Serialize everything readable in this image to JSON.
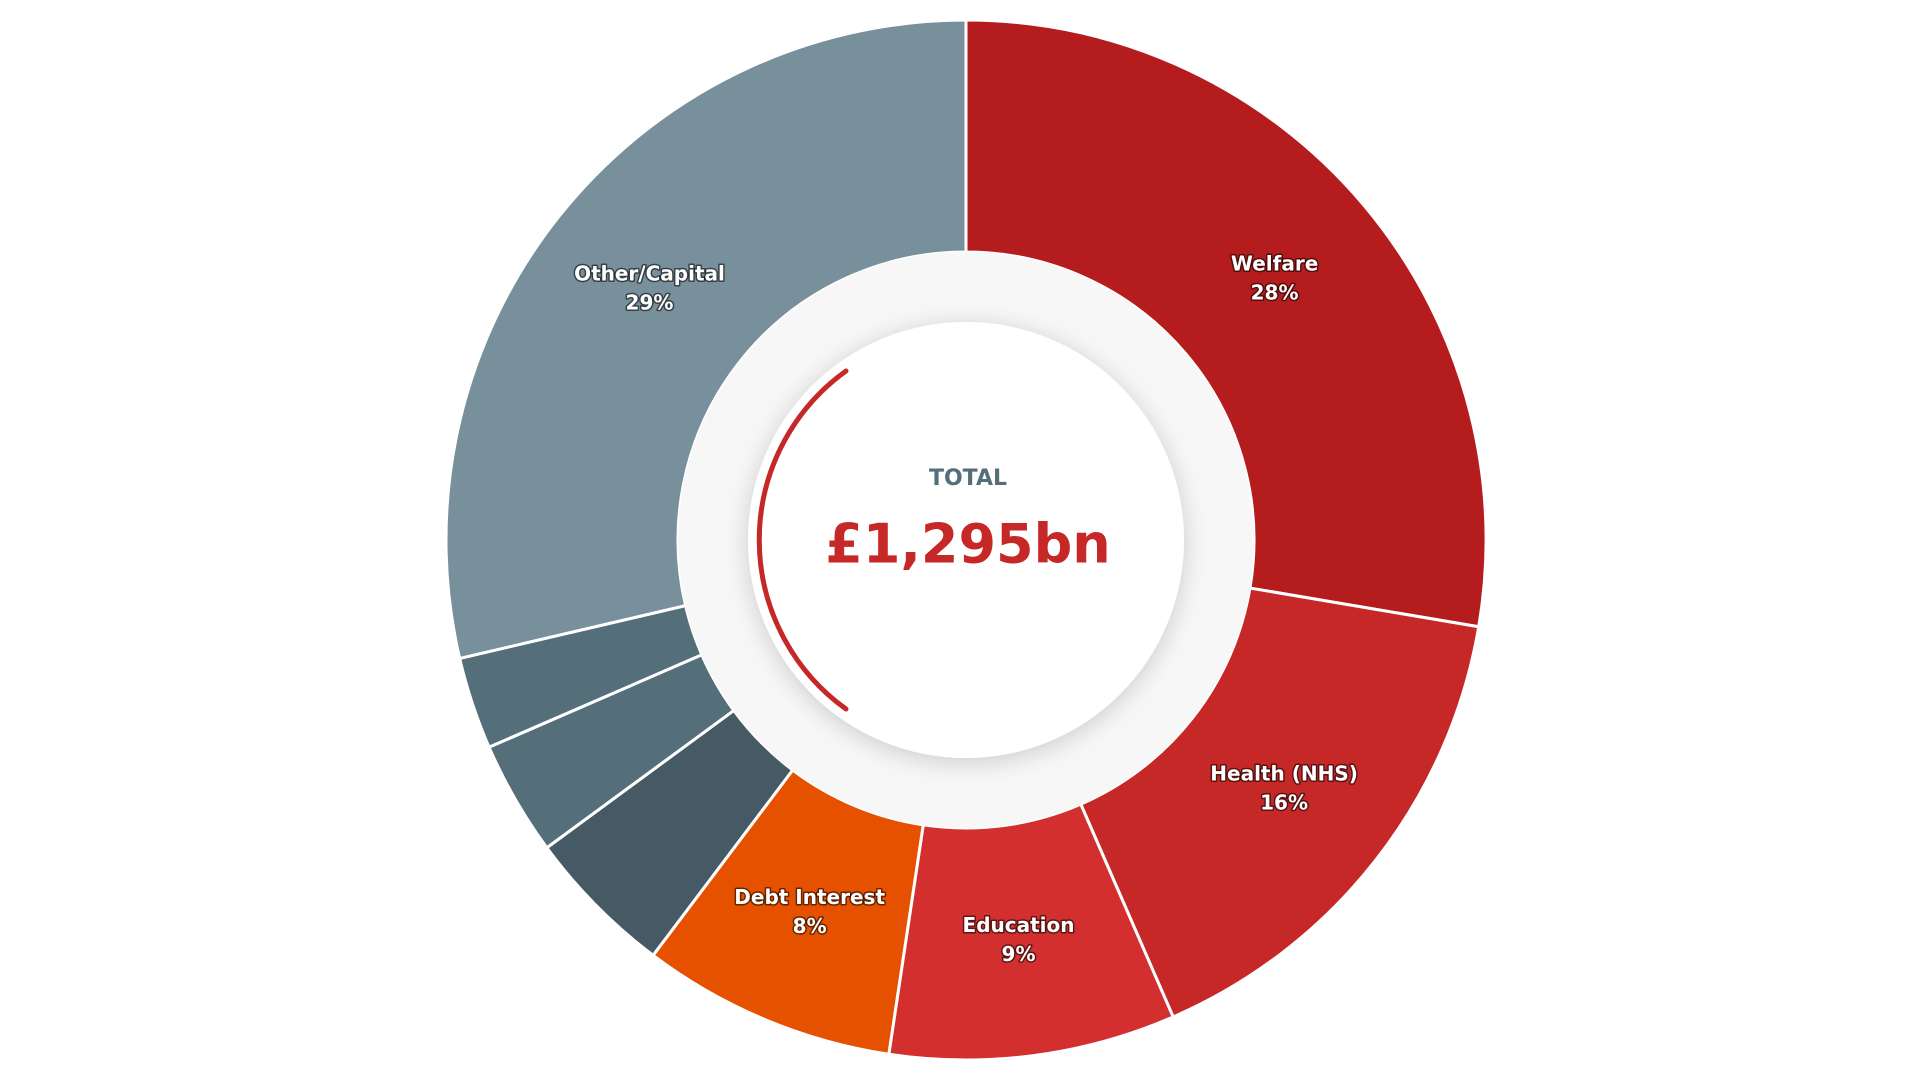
{
  "chart_data": {
    "type": "donut",
    "center_label": "TOTAL",
    "center_value": "£1,295bn",
    "categories": [
      "Welfare",
      "Health (NHS)",
      "Education",
      "Debt Interest",
      null,
      null,
      null,
      "Other/Capital"
    ],
    "values": [
      28,
      16,
      9,
      8,
      4.7,
      3.6,
      2.9,
      29
    ],
    "value_labels": [
      "28%",
      "16%",
      "9%",
      "8%",
      null,
      null,
      null,
      "29%"
    ],
    "colors": [
      "#b51c1e",
      "#c62828",
      "#d32f2f",
      "#e65100",
      "#455a64",
      "#546e7a",
      "#546e7a",
      "#78909c"
    ]
  }
}
